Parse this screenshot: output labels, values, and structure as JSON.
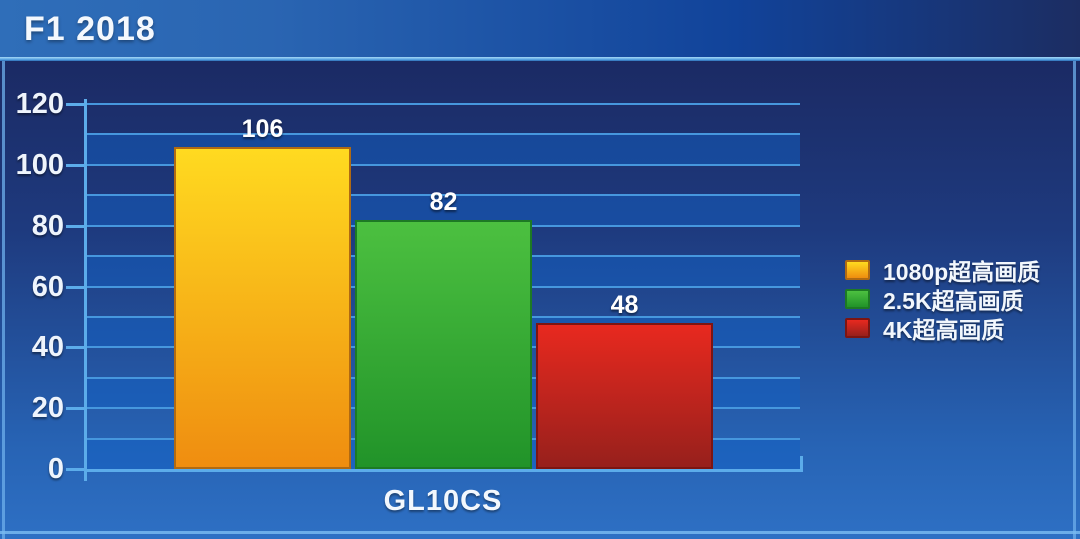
{
  "header": {
    "title": "F1 2018"
  },
  "chart_data": {
    "type": "bar",
    "title": "F1 2018",
    "categories": [
      "GL10CS"
    ],
    "series": [
      {
        "name": "1080p超高画质",
        "values": [
          106
        ],
        "color_top": "#ffda20",
        "color_bottom": "#ef8d10",
        "border": "#b06a12"
      },
      {
        "name": "2.5K超高画质",
        "values": [
          82
        ],
        "color_top": "#4cc040",
        "color_bottom": "#219329",
        "border": "#1d7a24"
      },
      {
        "name": "4K超高画质",
        "values": [
          48
        ],
        "color_top": "#e8291f",
        "color_bottom": "#97201c",
        "border": "#7c1512"
      }
    ],
    "xlabel": "",
    "ylabel": "",
    "ylim": [
      0,
      120
    ],
    "ytick_step": 20,
    "minor_grid_step": 10,
    "grid": true,
    "legend_position": "right"
  },
  "colors": {
    "grid_line": "#4697de",
    "axis_line": "#5cacea",
    "band_light": "rgba(18,95,196,0.5)",
    "header_accent": "#2f6eb9",
    "panel_top": "#1b2a64",
    "panel_bottom": "#2e70c4",
    "text": "#ffffff"
  }
}
